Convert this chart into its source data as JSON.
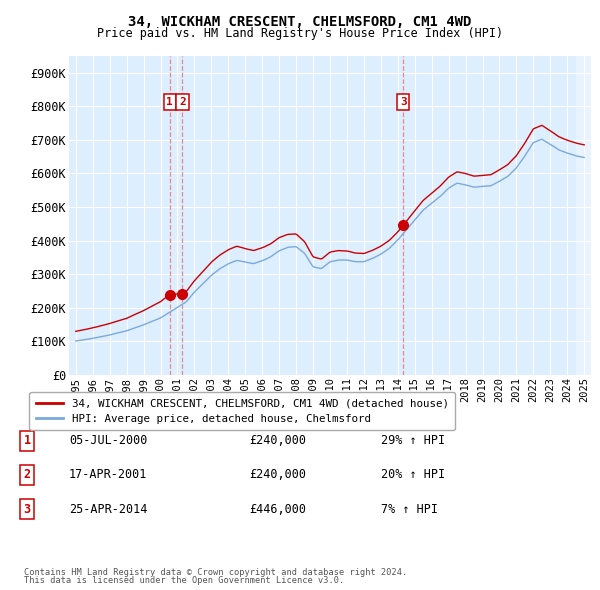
{
  "title": "34, WICKHAM CRESCENT, CHELMSFORD, CM1 4WD",
  "subtitle": "Price paid vs. HM Land Registry's House Price Index (HPI)",
  "ylim": [
    0,
    950000
  ],
  "yticks": [
    0,
    100000,
    200000,
    300000,
    400000,
    500000,
    600000,
    700000,
    800000,
    900000
  ],
  "ytick_labels": [
    "£0",
    "£100K",
    "£200K",
    "£300K",
    "£400K",
    "£500K",
    "£600K",
    "£700K",
    "£800K",
    "£900K"
  ],
  "background_color": "#ffffff",
  "plot_bg_color": "#ddeeff",
  "grid_color": "#ffffff",
  "hpi_color": "#7aaadd",
  "price_color": "#cc0000",
  "vline_color": "#ee8888",
  "legend_label_price": "34, WICKHAM CRESCENT, CHELMSFORD, CM1 4WD (detached house)",
  "legend_label_hpi": "HPI: Average price, detached house, Chelmsford",
  "transactions": [
    {
      "num": 1,
      "date": "05-JUL-2000",
      "price": 240000,
      "pct": "29%",
      "direction": "↑",
      "x_year": 2000.54
    },
    {
      "num": 2,
      "date": "17-APR-2001",
      "price": 240000,
      "pct": "20%",
      "direction": "↑",
      "x_year": 2001.29
    },
    {
      "num": 3,
      "date": "25-APR-2014",
      "price": 446000,
      "pct": "7%",
      "direction": "↑",
      "x_year": 2014.32
    }
  ],
  "footer1": "Contains HM Land Registry data © Crown copyright and database right 2024.",
  "footer2": "This data is licensed under the Open Government Licence v3.0.",
  "xlim_start": 1994.6,
  "xlim_end": 2025.4
}
